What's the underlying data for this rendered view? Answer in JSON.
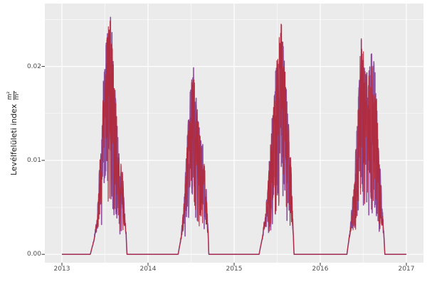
{
  "figure": {
    "background": "#FFFFFF"
  },
  "chart_data": {
    "type": "line",
    "title": "",
    "xlabel": "",
    "ylabel_text": "Levélfelületi index",
    "ylabel_unit_numerator": "m²",
    "ylabel_unit_denominator": "m²",
    "legend": "none",
    "grid": "on",
    "panel_background": "#EBEBEB",
    "grid_major_color": "#FFFFFF",
    "grid_minor_color": "#FFFFFF",
    "tick_mark_color": "#333333",
    "tick_label_color": "#4D4D4D",
    "axis_title_color": "#1A1A1A",
    "x_range": [
      2013,
      2017
    ],
    "y_range": [
      0,
      0.0258
    ],
    "x_ticks": [
      {
        "value": 2013,
        "label": "2013"
      },
      {
        "value": 2014,
        "label": "2014"
      },
      {
        "value": 2015,
        "label": "2015"
      },
      {
        "value": 2016,
        "label": "2016"
      },
      {
        "value": 2017,
        "label": "2017"
      }
    ],
    "y_ticks": [
      {
        "value": 0.0,
        "label": "0.00"
      },
      {
        "value": 0.01,
        "label": "0.01"
      },
      {
        "value": 0.02,
        "label": "0.02"
      }
    ],
    "x_minor": [
      2013.5,
      2014.5,
      2015.5,
      2016.5
    ],
    "y_minor": [
      0.005,
      0.015,
      0.025
    ],
    "series": [
      {
        "name": "series-purple",
        "color": "#8E4F9E",
        "line_width": 1.6,
        "seed": 11,
        "scale": 1.0,
        "noise_depth": 0.8
      },
      {
        "name": "series-red",
        "color": "#B02D41",
        "line_width": 1.1,
        "seed": 5,
        "scale": 0.985,
        "noise_depth": 0.78
      }
    ],
    "sampling_step_days": 1,
    "seasons": [
      {
        "year": 2013,
        "peak_value": 0.0258,
        "envelope": [
          [
            2013.33,
            0
          ],
          [
            2013.37,
            0.0015
          ],
          [
            2013.41,
            0.004
          ],
          [
            2013.44,
            0.01
          ],
          [
            2013.47,
            0.016
          ],
          [
            2013.5,
            0.022
          ],
          [
            2013.545,
            0.0258
          ],
          [
            2013.575,
            0.025
          ],
          [
            2013.6,
            0.021
          ],
          [
            2013.635,
            0.015
          ],
          [
            2013.66,
            0.011
          ],
          [
            2013.7,
            0.0095
          ],
          [
            2013.72,
            0.006
          ],
          [
            2013.745,
            0.0025
          ],
          [
            2013.755,
            0
          ]
        ]
      },
      {
        "year": 2014,
        "peak_value": 0.0203,
        "envelope": [
          [
            2014.35,
            0
          ],
          [
            2014.385,
            0.002
          ],
          [
            2014.42,
            0.006
          ],
          [
            2014.46,
            0.013
          ],
          [
            2014.5,
            0.019
          ],
          [
            2014.525,
            0.0203
          ],
          [
            2014.56,
            0.017
          ],
          [
            2014.6,
            0.013
          ],
          [
            2014.64,
            0.012
          ],
          [
            2014.67,
            0.008
          ],
          [
            2014.695,
            0.004
          ],
          [
            2014.705,
            0
          ]
        ]
      },
      {
        "year": 2015,
        "peak_value": 0.0255,
        "envelope": [
          [
            2015.29,
            0
          ],
          [
            2015.33,
            0.002
          ],
          [
            2015.38,
            0.006
          ],
          [
            2015.43,
            0.013
          ],
          [
            2015.47,
            0.019
          ],
          [
            2015.51,
            0.023
          ],
          [
            2015.55,
            0.0255
          ],
          [
            2015.585,
            0.022
          ],
          [
            2015.62,
            0.017
          ],
          [
            2015.65,
            0.012
          ],
          [
            2015.675,
            0.006
          ],
          [
            2015.695,
            0
          ]
        ]
      },
      {
        "year": 2016,
        "peak_value": 0.0244,
        "envelope": [
          [
            2016.31,
            0
          ],
          [
            2016.35,
            0.003
          ],
          [
            2016.4,
            0.009
          ],
          [
            2016.44,
            0.016
          ],
          [
            2016.475,
            0.0244
          ],
          [
            2016.52,
            0.021
          ],
          [
            2016.56,
            0.019
          ],
          [
            2016.6,
            0.022
          ],
          [
            2016.645,
            0.019
          ],
          [
            2016.68,
            0.012
          ],
          [
            2016.715,
            0.006
          ],
          [
            2016.74,
            0.002
          ],
          [
            2016.75,
            0
          ]
        ]
      }
    ]
  }
}
